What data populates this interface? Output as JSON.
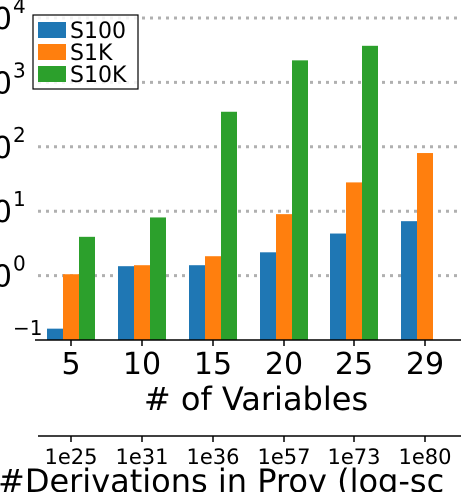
{
  "chart_data": {
    "type": "bar",
    "categories": [
      "5",
      "10",
      "15",
      "20",
      "25",
      "29"
    ],
    "xlabel": "# of Variables",
    "secondary_axis": {
      "label": "#Derivations in Prov (log-sc",
      "tick_labels": [
        "1e25",
        "1e31",
        "1e36",
        "1e57",
        "1e73",
        "1e80"
      ]
    },
    "y_scale": "log",
    "ylim": [
      0.1,
      10000
    ],
    "y_tick_labels": [
      {
        "base": "0",
        "exp": "4"
      },
      {
        "base": "0",
        "exp": "3"
      },
      {
        "base": "0",
        "exp": "2"
      },
      {
        "base": "0",
        "exp": "1"
      },
      {
        "base": "0",
        "exp": "0"
      },
      {
        "base": "",
        "exp": "−1"
      }
    ],
    "grid": true,
    "legend_position": "top-left",
    "series": [
      {
        "name": "S100",
        "color": "#1f77b4",
        "values": [
          0.15,
          1.4,
          1.45,
          2.3,
          4.5,
          7
        ]
      },
      {
        "name": "S1K",
        "color": "#ff7f0e",
        "values": [
          1.05,
          1.45,
          2.0,
          9,
          28,
          80
        ]
      },
      {
        "name": "S10K",
        "color": "#2ca02c",
        "values": [
          4,
          8,
          350,
          2200,
          3700,
          null
        ]
      }
    ]
  }
}
